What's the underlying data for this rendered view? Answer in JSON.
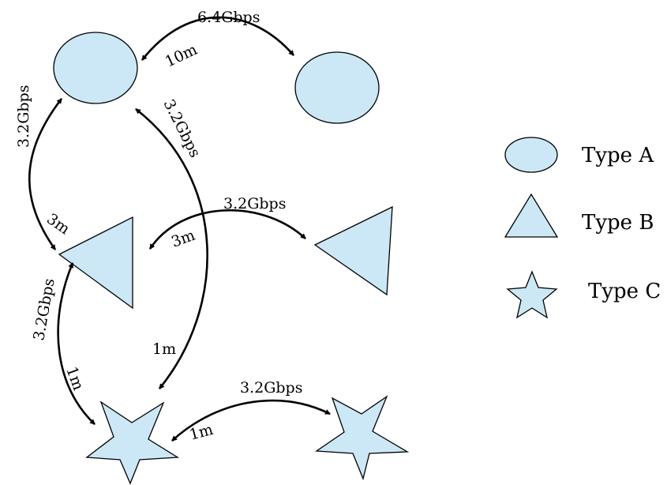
{
  "legend": {
    "type_a": "Type A",
    "type_b": "Type B",
    "type_c": "Type C"
  },
  "colors": {
    "node_fill": "#cce8f6",
    "stroke": "#000000"
  },
  "nodes": [
    {
      "id": "ellipse-1",
      "type": "Type A"
    },
    {
      "id": "ellipse-2",
      "type": "Type A"
    },
    {
      "id": "triangle-1",
      "type": "Type B"
    },
    {
      "id": "triangle-2",
      "type": "Type B"
    },
    {
      "id": "star-1",
      "type": "Type C"
    },
    {
      "id": "star-2",
      "type": "Type C"
    }
  ],
  "links": [
    {
      "from": "ellipse-1",
      "to": "ellipse-2",
      "bandwidth": "6.4Gbps",
      "length": "10m"
    },
    {
      "from": "ellipse-1",
      "to": "triangle-1",
      "bandwidth": "3.2Gbps",
      "length": "3m"
    },
    {
      "from": "ellipse-1",
      "to": "star-1",
      "bandwidth": "3.2Gbps",
      "length": "1m"
    },
    {
      "from": "triangle-1",
      "to": "triangle-2",
      "bandwidth": "3.2Gbps",
      "length": "3m"
    },
    {
      "from": "triangle-1",
      "to": "star-1",
      "bandwidth": "3.2Gbps",
      "length": "1m"
    },
    {
      "from": "star-1",
      "to": "star-2",
      "bandwidth": "3.2Gbps",
      "length": "1m"
    }
  ]
}
